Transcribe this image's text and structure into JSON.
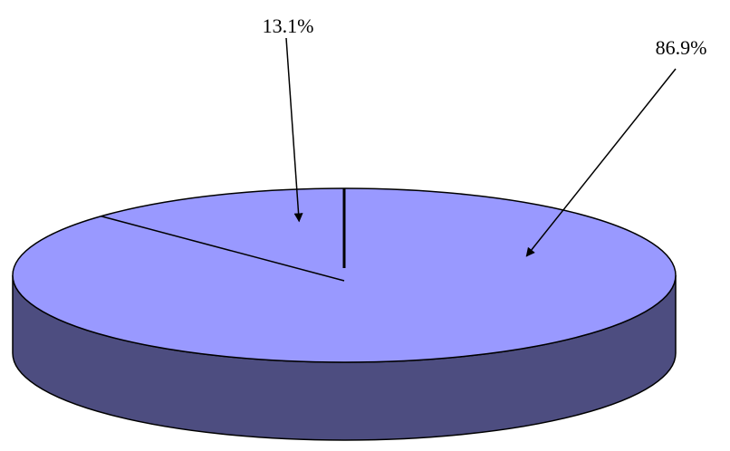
{
  "chart_data": {
    "type": "pie",
    "style": "3d",
    "title": "",
    "categories": [
      "",
      ""
    ],
    "values": [
      13.1,
      86.9
    ],
    "labels": [
      "13.1%",
      "86.9%"
    ],
    "legend": "none",
    "colors": {
      "top": "#9999ff",
      "side": "#4d4d80",
      "outline": "#000000"
    }
  }
}
